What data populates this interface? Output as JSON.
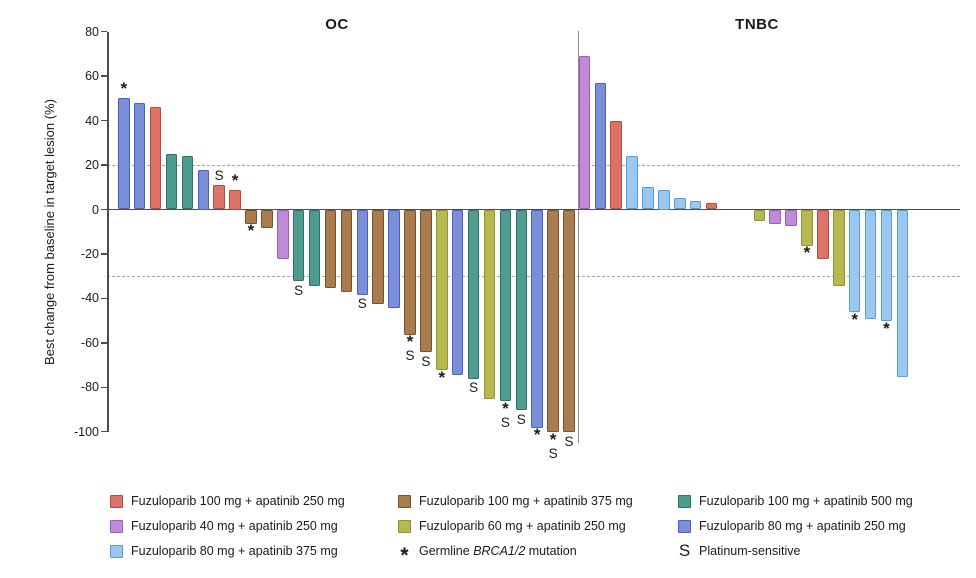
{
  "chart_data": {
    "type": "bar",
    "subtype": "waterfall",
    "ylabel": "Best change from baseline in target lesion (%)",
    "ylim": [
      -100,
      80
    ],
    "yticks": [
      80,
      60,
      40,
      20,
      0,
      -20,
      -40,
      -60,
      -80,
      -100
    ],
    "reference_lines": [
      20,
      -30
    ],
    "grid": "off",
    "legend_position": "bottom",
    "colors": {
      "red": {
        "fill": "#DB7368",
        "edge": "#BA4A41"
      },
      "purple": {
        "fill": "#BF8BD9",
        "edge": "#9D59C4"
      },
      "lightblue": {
        "fill": "#9AC8EE",
        "edge": "#5B9BD5"
      },
      "brown": {
        "fill": "#A87C4F",
        "edge": "#7A5226"
      },
      "yellow": {
        "fill": "#B5B94F",
        "edge": "#8E9430"
      },
      "teal": {
        "fill": "#4E9C90",
        "edge": "#2E7265"
      },
      "blue": {
        "fill": "#7B8ED8",
        "edge": "#4A5EC4"
      },
      "none": {
        "fill": "transparent",
        "edge": "transparent"
      }
    },
    "marker_meanings": {
      "*": "Germline BRCA1/2 mutation",
      "S": "Platinum-sensitive"
    },
    "panels": [
      {
        "title": "OC",
        "bars": [
          {
            "v": 50,
            "c": "blue",
            "m": "*"
          },
          {
            "v": 48,
            "c": "blue",
            "m": ""
          },
          {
            "v": 46,
            "c": "red",
            "m": ""
          },
          {
            "v": 25,
            "c": "teal",
            "m": ""
          },
          {
            "v": 24,
            "c": "teal",
            "m": ""
          },
          {
            "v": 18,
            "c": "blue",
            "m": ""
          },
          {
            "v": 11,
            "c": "red",
            "m": "S"
          },
          {
            "v": 9,
            "c": "red",
            "m": "*"
          },
          {
            "v": -6,
            "c": "brown",
            "m": "*"
          },
          {
            "v": -8,
            "c": "brown",
            "m": ""
          },
          {
            "v": -22,
            "c": "purple",
            "m": ""
          },
          {
            "v": -32,
            "c": "teal",
            "m": "S"
          },
          {
            "v": -34,
            "c": "teal",
            "m": ""
          },
          {
            "v": -35,
            "c": "brown",
            "m": ""
          },
          {
            "v": -37,
            "c": "brown",
            "m": ""
          },
          {
            "v": -38,
            "c": "blue",
            "m": "S"
          },
          {
            "v": -42,
            "c": "brown",
            "m": ""
          },
          {
            "v": -44,
            "c": "blue",
            "m": ""
          },
          {
            "v": -56,
            "c": "brown",
            "m": "*S"
          },
          {
            "v": -64,
            "c": "brown",
            "m": "S"
          },
          {
            "v": -72,
            "c": "yellow",
            "m": "*"
          },
          {
            "v": -74,
            "c": "blue",
            "m": ""
          },
          {
            "v": -76,
            "c": "teal",
            "m": "S"
          },
          {
            "v": -85,
            "c": "yellow",
            "m": ""
          },
          {
            "v": -86,
            "c": "teal",
            "m": "*S"
          },
          {
            "v": -90,
            "c": "teal",
            "m": "S"
          },
          {
            "v": -98,
            "c": "blue",
            "m": "*"
          },
          {
            "v": -100,
            "c": "brown",
            "m": "*S"
          },
          {
            "v": -100,
            "c": "brown",
            "m": "S"
          }
        ]
      },
      {
        "title": "TNBC",
        "bars": [
          {
            "v": 69,
            "c": "purple",
            "m": ""
          },
          {
            "v": 57,
            "c": "blue",
            "m": ""
          },
          {
            "v": 40,
            "c": "red",
            "m": ""
          },
          {
            "v": 24,
            "c": "lightblue",
            "m": ""
          },
          {
            "v": 10,
            "c": "lightblue",
            "m": ""
          },
          {
            "v": 9,
            "c": "lightblue",
            "m": ""
          },
          {
            "v": 5,
            "c": "lightblue",
            "m": ""
          },
          {
            "v": 4,
            "c": "lightblue",
            "m": ""
          },
          {
            "v": 3,
            "c": "red",
            "m": ""
          },
          {
            "v": 0,
            "c": "none",
            "m": ""
          },
          {
            "v": 0,
            "c": "none",
            "m": ""
          },
          {
            "v": -5,
            "c": "yellow",
            "m": ""
          },
          {
            "v": -6,
            "c": "purple",
            "m": ""
          },
          {
            "v": -7,
            "c": "purple",
            "m": ""
          },
          {
            "v": -16,
            "c": "yellow",
            "m": "*"
          },
          {
            "v": -22,
            "c": "red",
            "m": ""
          },
          {
            "v": -34,
            "c": "yellow",
            "m": ""
          },
          {
            "v": -46,
            "c": "lightblue",
            "m": "*"
          },
          {
            "v": -49,
            "c": "lightblue",
            "m": ""
          },
          {
            "v": -50,
            "c": "lightblue",
            "m": "*"
          },
          {
            "v": -75,
            "c": "lightblue",
            "m": ""
          }
        ]
      }
    ]
  },
  "legend": {
    "columns": [
      {
        "items": [
          {
            "swatch": "red",
            "label": "Fuzuloparib 100 mg + apatinib 250 mg"
          },
          {
            "swatch": "purple",
            "label": "Fuzuloparib 40 mg + apatinib 250 mg"
          },
          {
            "swatch": "lightblue",
            "label": "Fuzuloparib 80 mg + apatinib 375 mg"
          }
        ]
      },
      {
        "items": [
          {
            "swatch": "brown",
            "label": "Fuzuloparib 100 mg + apatinib 375 mg"
          },
          {
            "swatch": "yellow",
            "label": "Fuzuloparib 60 mg + apatinib 250 mg"
          },
          {
            "symbol": "*",
            "label_prefix": "Germline ",
            "label_italic": "BRCA1/2",
            "label_suffix": " mutation"
          }
        ]
      },
      {
        "items": [
          {
            "swatch": "teal",
            "label": "Fuzuloparib 100 mg + apatinib 500 mg"
          },
          {
            "swatch": "blue",
            "label": "Fuzuloparib 80 mg + apatinib 250 mg"
          },
          {
            "symbol": "S",
            "label": "Platinum-sensitive"
          }
        ]
      }
    ]
  }
}
